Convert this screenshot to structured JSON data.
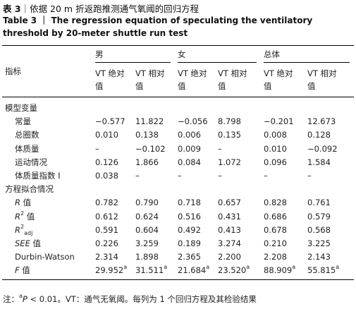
{
  "caption_cn": [
    {
      "text": "表 3",
      "format": "bold"
    },
    {
      "text": "｜依据 20 m 折返跑推测通气氧阈的回归方程"
    }
  ],
  "caption_en": [
    {
      "text": "Table 3 ｜ The regression equation of speculating the ventilatory threshold by 20-meter shuttle run test",
      "format": "bold"
    }
  ],
  "table": {
    "groups": [
      "指标",
      "男",
      "女",
      "总体"
    ],
    "subheaders": [
      "VT 绝对值",
      "VT 相对值",
      "VT 绝对值",
      "VT 相对值",
      "VT 绝对值",
      "VT 相对值"
    ],
    "rows": [
      [
        "模型变量"
      ],
      [
        "常量",
        "−0.577",
        "11.822",
        "−0.056",
        "8.798",
        "−0.201",
        "12.673"
      ],
      [
        "总圈数",
        "0.010",
        "0.138",
        "0.006",
        "0.135",
        "0.008",
        "0.128"
      ],
      [
        "体质量",
        "–",
        "−0.102",
        "0.009",
        "–",
        "0.010",
        "−0.092"
      ],
      [
        "运动情况",
        "0.126",
        "1.866",
        "0.084",
        "1.072",
        "0.096",
        "1.584"
      ],
      [
        "体质量指数 I",
        "0.038",
        "–",
        "–",
        "–",
        "–",
        "–"
      ],
      [
        "方程拟合情况"
      ],
      [
        [
          {
            "text": "R",
            "format": "italic"
          },
          {
            "text": " 值"
          }
        ],
        "0.782",
        "0.790",
        "0.718",
        "0.657",
        "0.828",
        "0.761"
      ],
      [
        [
          {
            "text": "R",
            "format": "italic"
          },
          {
            "text": "2",
            "format": "sup"
          },
          {
            "text": " 值"
          }
        ],
        "0.612",
        "0.624",
        "0.516",
        "0.431",
        "0.686",
        "0.579"
      ],
      [
        [
          {
            "text": "R",
            "format": "italic"
          },
          {
            "text": "2",
            "format": "sup"
          },
          {
            "text": "adj",
            "format": "sub"
          }
        ],
        "0.591",
        "0.604",
        "0.492",
        "0.413",
        "0.678",
        "0.568"
      ],
      [
        [
          {
            "text": "SEE",
            "format": "italic"
          },
          {
            "text": " 值"
          }
        ],
        "0.226",
        "3.259",
        "0.189",
        "3.274",
        "0.210",
        "3.225"
      ],
      [
        "Durbin-Watson",
        "2.314",
        "1.898",
        "2.365",
        "2.200",
        "2.208",
        "2.143"
      ],
      [
        [
          {
            "text": "F",
            "format": "italic"
          },
          {
            "text": " 值"
          }
        ],
        [
          {
            "text": "29.952"
          },
          {
            "text": "a",
            "format": "sup"
          }
        ],
        [
          {
            "text": "31.511"
          },
          {
            "text": "a",
            "format": "sup"
          }
        ],
        [
          {
            "text": "21.684"
          },
          {
            "text": "a",
            "format": "sup"
          }
        ],
        [
          {
            "text": "23.520"
          },
          {
            "text": "a",
            "format": "sup"
          }
        ],
        [
          {
            "text": "88.909"
          },
          {
            "text": "a",
            "format": "sup"
          }
        ],
        [
          {
            "text": "55.815"
          },
          {
            "text": "a",
            "format": "sup"
          }
        ]
      ]
    ]
  },
  "note": [
    {
      "text": "注："
    },
    {
      "text": "a",
      "format": "sup"
    },
    {
      "text": "P",
      "format": "italic"
    },
    {
      "text": " < 0.01。VT：通气无氧阈。每列为 1 个回归方程及其检验结果"
    }
  ]
}
